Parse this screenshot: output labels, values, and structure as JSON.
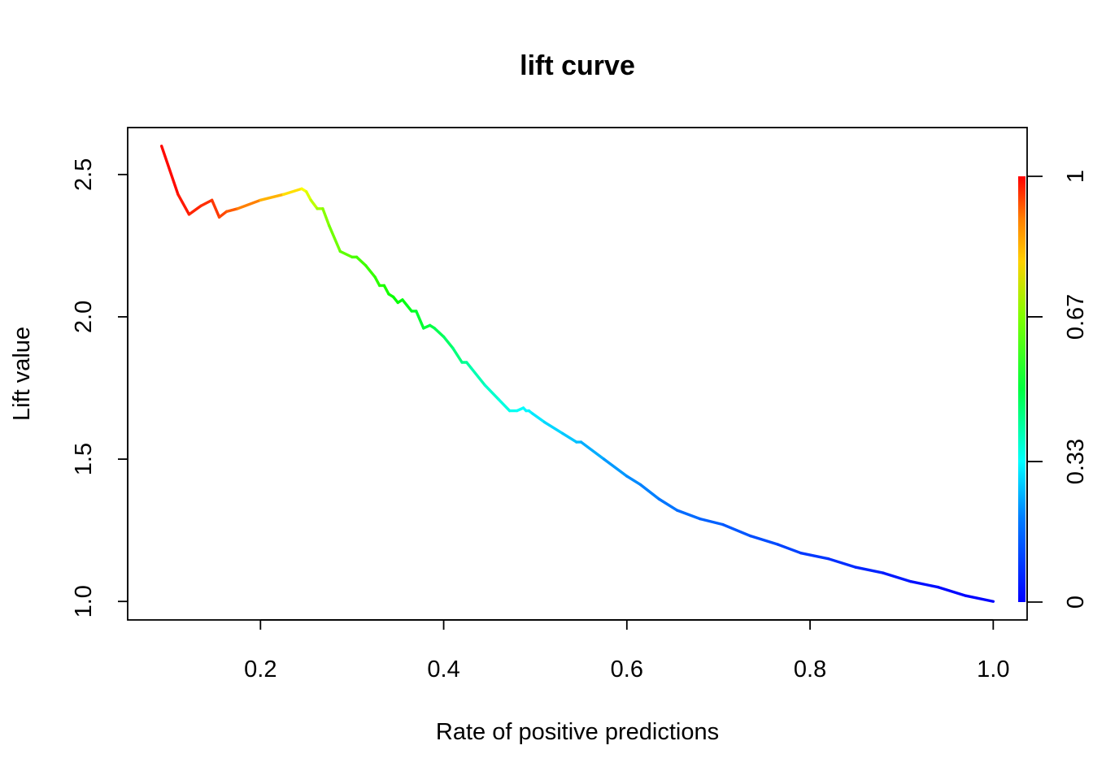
{
  "chart_data": {
    "type": "line",
    "title": "lift curve",
    "xlabel": "Rate of positive predictions",
    "ylabel": "Lift value",
    "xlim": [
      0.055,
      1.037
    ],
    "ylim": [
      0.935,
      2.665
    ],
    "xticks": [
      {
        "value": 0.2,
        "label": "0.2"
      },
      {
        "value": 0.4,
        "label": "0.4"
      },
      {
        "value": 0.6,
        "label": "0.6"
      },
      {
        "value": 0.8,
        "label": "0.8"
      },
      {
        "value": 1.0,
        "label": "1.0"
      }
    ],
    "yticks": [
      {
        "value": 1.0,
        "label": "1.0"
      },
      {
        "value": 1.5,
        "label": "1.5"
      },
      {
        "value": 2.0,
        "label": "2.0"
      },
      {
        "value": 2.5,
        "label": "2.5"
      }
    ],
    "grid": false,
    "legend": "none",
    "colorbar": {
      "orientation": "vertical",
      "placement": "right",
      "range": [
        0,
        1
      ],
      "ticks": [
        {
          "value": 0,
          "label": "0"
        },
        {
          "value": 0.33,
          "label": "0.33"
        },
        {
          "value": 0.67,
          "label": "0.67"
        },
        {
          "value": 1,
          "label": "1"
        }
      ],
      "colormap": "rainbow blue-to-red"
    },
    "series": [
      {
        "x": [
          0.092,
          0.11,
          0.122,
          0.135,
          0.147,
          0.155,
          0.163,
          0.175,
          0.2,
          0.225,
          0.245,
          0.25,
          0.255,
          0.262,
          0.268,
          0.275,
          0.287,
          0.3,
          0.305,
          0.315,
          0.325,
          0.33,
          0.335,
          0.34,
          0.345,
          0.35,
          0.355,
          0.36,
          0.365,
          0.37,
          0.378,
          0.385,
          0.39,
          0.4,
          0.41,
          0.42,
          0.425,
          0.43,
          0.445,
          0.46,
          0.472,
          0.48,
          0.487,
          0.49,
          0.493,
          0.497,
          0.51,
          0.53,
          0.545,
          0.55,
          0.575,
          0.6,
          0.615,
          0.635,
          0.655,
          0.68,
          0.705,
          0.735,
          0.765,
          0.79,
          0.82,
          0.85,
          0.88,
          0.91,
          0.94,
          0.97,
          1.0
        ],
        "y": [
          2.6,
          2.43,
          2.36,
          2.39,
          2.41,
          2.35,
          2.37,
          2.38,
          2.41,
          2.43,
          2.45,
          2.44,
          2.41,
          2.38,
          2.38,
          2.32,
          2.23,
          2.21,
          2.21,
          2.18,
          2.14,
          2.11,
          2.11,
          2.08,
          2.07,
          2.05,
          2.06,
          2.04,
          2.02,
          2.02,
          1.96,
          1.97,
          1.96,
          1.93,
          1.89,
          1.84,
          1.84,
          1.82,
          1.76,
          1.71,
          1.67,
          1.67,
          1.68,
          1.67,
          1.67,
          1.66,
          1.63,
          1.59,
          1.56,
          1.56,
          1.5,
          1.44,
          1.41,
          1.36,
          1.32,
          1.29,
          1.27,
          1.23,
          1.2,
          1.17,
          1.15,
          1.12,
          1.1,
          1.07,
          1.05,
          1.02,
          1.0
        ],
        "color_values": [
          1.0,
          0.98,
          0.97,
          0.96,
          0.95,
          0.94,
          0.92,
          0.9,
          0.85,
          0.8,
          0.76,
          0.73,
          0.7,
          0.67,
          0.64,
          0.62,
          0.6,
          0.58,
          0.57,
          0.56,
          0.55,
          0.54,
          0.53,
          0.52,
          0.51,
          0.5,
          0.49,
          0.48,
          0.47,
          0.46,
          0.45,
          0.44,
          0.43,
          0.41,
          0.39,
          0.37,
          0.35,
          0.34,
          0.31,
          0.29,
          0.27,
          0.26,
          0.25,
          0.245,
          0.24,
          0.235,
          0.22,
          0.2,
          0.19,
          0.18,
          0.16,
          0.14,
          0.13,
          0.12,
          0.11,
          0.1,
          0.09,
          0.08,
          0.07,
          0.06,
          0.05,
          0.04,
          0.03,
          0.02,
          0.01,
          0.005,
          0.0
        ]
      }
    ]
  }
}
